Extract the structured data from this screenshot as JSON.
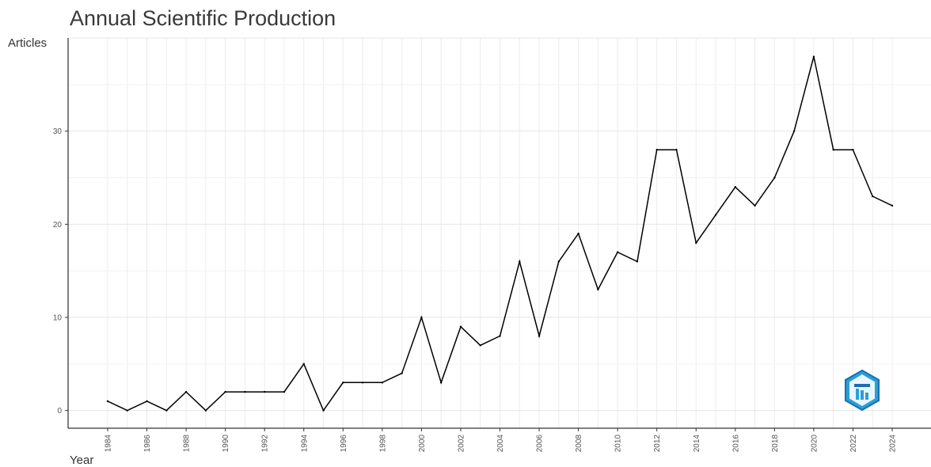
{
  "chart_data": {
    "type": "line",
    "title": "Annual Scientific Production",
    "xlabel": "Year",
    "ylabel": "Articles",
    "x": [
      1984,
      1985,
      1986,
      1987,
      1988,
      1989,
      1990,
      1991,
      1992,
      1993,
      1994,
      1995,
      1996,
      1997,
      1998,
      1999,
      2000,
      2001,
      2002,
      2003,
      2004,
      2005,
      2006,
      2007,
      2008,
      2009,
      2010,
      2011,
      2012,
      2013,
      2014,
      2015,
      2016,
      2017,
      2018,
      2019,
      2020,
      2021,
      2022,
      2023,
      2024
    ],
    "series": [
      {
        "values": [
          1,
          0,
          1,
          0,
          2,
          0,
          2,
          2,
          2,
          2,
          5,
          0,
          3,
          3,
          3,
          4,
          10,
          3,
          9,
          7,
          8,
          16,
          8,
          16,
          19,
          13,
          17,
          16,
          28,
          28,
          18,
          21,
          24,
          22,
          25,
          30,
          38,
          28,
          28,
          23,
          22
        ]
      }
    ],
    "xticks": [
      "1984",
      "1986",
      "1988",
      "1990",
      "1992",
      "1994",
      "1996",
      "1998",
      "2000",
      "2002",
      "2004",
      "2006",
      "2008",
      "2010",
      "2012",
      "2014",
      "2016",
      "2018",
      "2020",
      "2022",
      "2024"
    ],
    "yticks": [
      "0",
      "10",
      "20",
      "30"
    ],
    "xlim": [
      1984,
      2024
    ],
    "ylim": [
      -1.9,
      40
    ],
    "grid": true,
    "line_color": "#000000"
  },
  "logo_icon": "bibliometrix-hexagon-logo-icon"
}
